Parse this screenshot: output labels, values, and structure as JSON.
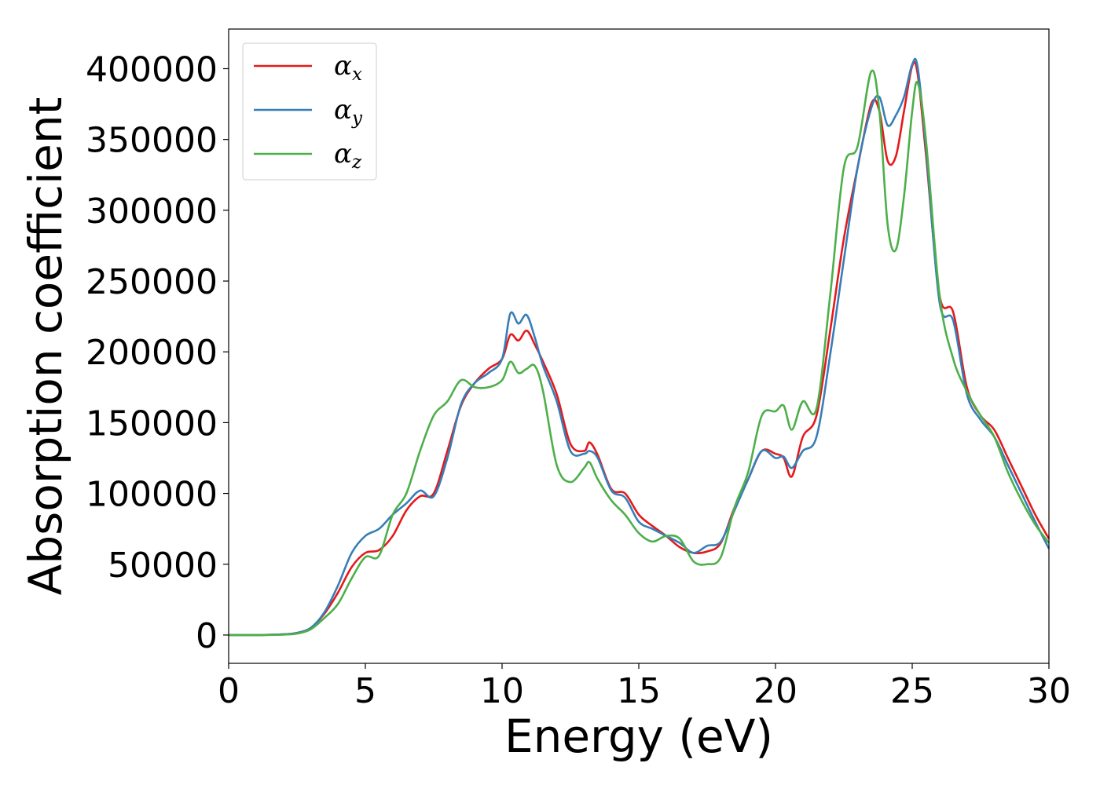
{
  "chart_data": {
    "type": "line",
    "title": "",
    "xlabel": "Energy (eV)",
    "ylabel": "Absorption coefficient",
    "xlim": [
      0,
      30
    ],
    "ylim": [
      -20000,
      428000
    ],
    "xticks": [
      0,
      5,
      10,
      15,
      20,
      25,
      30
    ],
    "xtick_labels": [
      "0",
      "5",
      "10",
      "15",
      "20",
      "25",
      "30"
    ],
    "yticks": [
      0,
      50000,
      100000,
      150000,
      200000,
      250000,
      300000,
      350000,
      400000
    ],
    "ytick_labels": [
      "0",
      "50000",
      "100000",
      "150000",
      "200000",
      "250000",
      "300000",
      "350000",
      "400000"
    ],
    "grid": false,
    "legend_position": "top-left",
    "series": [
      {
        "name": "αx",
        "label_base": "α",
        "label_sub": "x",
        "color": "#e41a1c",
        "x": [
          0,
          1,
          2,
          2.5,
          3,
          3.5,
          4,
          4.5,
          5,
          5.5,
          6,
          6.5,
          7,
          7.5,
          8,
          8.5,
          9,
          9.5,
          10,
          10.3,
          10.6,
          10.9,
          11.2,
          11.5,
          12,
          12.5,
          13,
          13.2,
          13.5,
          14,
          14.5,
          15,
          15.5,
          16,
          16.5,
          17,
          17.5,
          18,
          18.5,
          19,
          19.5,
          20,
          20.3,
          20.6,
          21,
          21.5,
          22,
          22.5,
          23,
          23.5,
          23.8,
          24.1,
          24.4,
          24.7,
          25,
          25.2,
          25.5,
          26,
          26.5,
          27,
          27.5,
          28,
          28.5,
          29,
          29.5,
          30
        ],
        "values": [
          0,
          0,
          500,
          1500,
          5000,
          15000,
          30000,
          48000,
          58000,
          60000,
          70000,
          88000,
          98000,
          100000,
          130000,
          162000,
          178000,
          188000,
          195000,
          212000,
          208000,
          215000,
          205000,
          193000,
          170000,
          135000,
          130000,
          136000,
          127000,
          103000,
          100000,
          85000,
          77000,
          70000,
          62000,
          58000,
          59000,
          65000,
          90000,
          110000,
          130000,
          128000,
          125000,
          112000,
          140000,
          155000,
          215000,
          280000,
          330000,
          375000,
          370000,
          335000,
          338000,
          370000,
          402000,
          396000,
          340000,
          240000,
          228000,
          175000,
          155000,
          145000,
          125000,
          105000,
          85000,
          68000
        ]
      },
      {
        "name": "αy",
        "label_base": "α",
        "label_sub": "y",
        "color": "#377eb8",
        "x": [
          0,
          1,
          2,
          2.5,
          3,
          3.5,
          4,
          4.5,
          5,
          5.5,
          6,
          6.5,
          7,
          7.5,
          8,
          8.5,
          9,
          9.5,
          10,
          10.3,
          10.6,
          10.9,
          11.2,
          11.5,
          12,
          12.5,
          13,
          13.2,
          13.5,
          14,
          14.5,
          15,
          15.5,
          16,
          16.5,
          17,
          17.5,
          18,
          18.5,
          19,
          19.5,
          20,
          20.3,
          20.6,
          21,
          21.5,
          22,
          22.5,
          23,
          23.5,
          23.8,
          24.1,
          24.4,
          24.7,
          25,
          25.2,
          25.5,
          26,
          26.5,
          27,
          27.5,
          28,
          28.5,
          29,
          29.5,
          30
        ],
        "values": [
          0,
          0,
          500,
          1500,
          5000,
          16000,
          35000,
          58000,
          70000,
          75000,
          85000,
          93000,
          102000,
          98000,
          125000,
          163000,
          178000,
          185000,
          195000,
          227000,
          220000,
          226000,
          210000,
          190000,
          165000,
          130000,
          128000,
          130000,
          125000,
          102000,
          97000,
          80000,
          75000,
          70000,
          65000,
          58000,
          63000,
          66000,
          88000,
          110000,
          130000,
          125000,
          126000,
          118000,
          130000,
          140000,
          198000,
          265000,
          330000,
          372000,
          380000,
          360000,
          367000,
          380000,
          403000,
          401000,
          345000,
          235000,
          222000,
          170000,
          152000,
          140000,
          120000,
          100000,
          80000,
          61000
        ]
      },
      {
        "name": "αz",
        "label_base": "α",
        "label_sub": "z",
        "color": "#4daf4a",
        "x": [
          0,
          1,
          2,
          2.5,
          3,
          3.5,
          4,
          4.5,
          5,
          5.5,
          6,
          6.5,
          7,
          7.5,
          8,
          8.5,
          9,
          9.5,
          10,
          10.3,
          10.6,
          10.9,
          11.2,
          11.5,
          12,
          12.5,
          13,
          13.2,
          13.5,
          14,
          14.5,
          15,
          15.5,
          16,
          16.5,
          17,
          17.5,
          18,
          18.5,
          19,
          19.5,
          20,
          20.3,
          20.6,
          21,
          21.5,
          22,
          22.5,
          23,
          23.5,
          23.8,
          24.1,
          24.4,
          24.7,
          25,
          25.2,
          25.5,
          26,
          26.5,
          27,
          27.5,
          28,
          28.5,
          29,
          29.5,
          30
        ],
        "values": [
          0,
          0,
          300,
          1000,
          4000,
          12000,
          22000,
          40000,
          55000,
          56000,
          85000,
          100000,
          130000,
          155000,
          165000,
          180000,
          175000,
          175000,
          180000,
          193000,
          185000,
          188000,
          190000,
          172000,
          120000,
          108000,
          118000,
          122000,
          110000,
          95000,
          85000,
          72000,
          66000,
          70000,
          68000,
          52000,
          50000,
          55000,
          90000,
          115000,
          155000,
          158000,
          162000,
          145000,
          165000,
          160000,
          240000,
          330000,
          345000,
          398000,
          370000,
          290000,
          272000,
          310000,
          370000,
          390000,
          350000,
          240000,
          195000,
          172000,
          155000,
          140000,
          115000,
          95000,
          78000,
          65000
        ]
      }
    ]
  }
}
